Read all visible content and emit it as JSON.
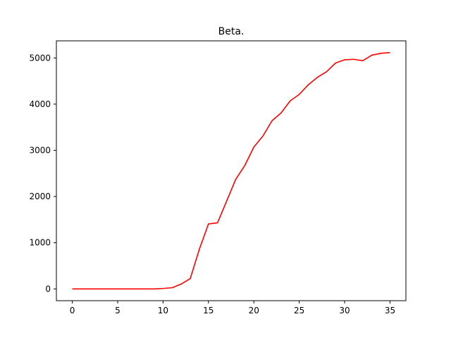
{
  "chart_data": {
    "type": "line",
    "title": "Beta.",
    "xlabel": "",
    "ylabel": "",
    "xlim": [
      -1.75,
      36.75
    ],
    "ylim": [
      -255,
      5370
    ],
    "xticks": [
      0,
      5,
      10,
      15,
      20,
      25,
      30,
      35
    ],
    "yticks": [
      0,
      1000,
      2000,
      3000,
      4000,
      5000
    ],
    "grid": false,
    "legend": "none",
    "series": [
      {
        "color": "#ff0000",
        "x": [
          0,
          1,
          2,
          3,
          4,
          5,
          6,
          7,
          8,
          9,
          10,
          11,
          12,
          13,
          14,
          15,
          16,
          17,
          18,
          19,
          20,
          21,
          22,
          23,
          24,
          25,
          26,
          27,
          28,
          29,
          30,
          31,
          32,
          33,
          34,
          35
        ],
        "y": [
          0,
          0,
          0,
          0,
          0,
          0,
          0,
          0,
          0,
          0,
          10,
          25,
          105,
          225,
          860,
          1405,
          1430,
          1900,
          2370,
          2670,
          3070,
          3310,
          3640,
          3810,
          4070,
          4210,
          4420,
          4580,
          4700,
          4890,
          4960,
          4970,
          4940,
          5060,
          5100,
          5115
        ]
      }
    ]
  }
}
